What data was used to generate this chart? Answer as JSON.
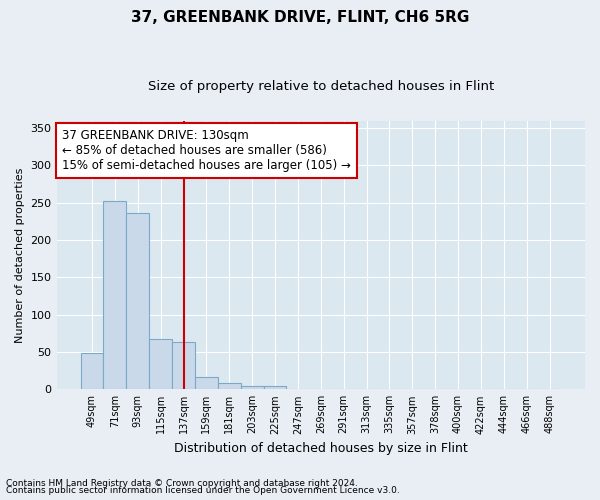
{
  "title": "37, GREENBANK DRIVE, FLINT, CH6 5RG",
  "subtitle": "Size of property relative to detached houses in Flint",
  "xlabel": "Distribution of detached houses by size in Flint",
  "ylabel": "Number of detached properties",
  "footnote1": "Contains HM Land Registry data © Crown copyright and database right 2024.",
  "footnote2": "Contains public sector information licensed under the Open Government Licence v3.0.",
  "annotation_line1": "37 GREENBANK DRIVE: 130sqm",
  "annotation_line2": "← 85% of detached houses are smaller (586)",
  "annotation_line3": "15% of semi-detached houses are larger (105) →",
  "bar_color": "#c9d9ea",
  "bar_edge_color": "#7aaac8",
  "vline_color": "#cc0000",
  "vline_x_index": 4,
  "categories": [
    "49sqm",
    "71sqm",
    "93sqm",
    "115sqm",
    "137sqm",
    "159sqm",
    "181sqm",
    "203sqm",
    "225sqm",
    "247sqm",
    "269sqm",
    "291sqm",
    "313sqm",
    "335sqm",
    "357sqm",
    "378sqm",
    "400sqm",
    "422sqm",
    "444sqm",
    "466sqm",
    "488sqm"
  ],
  "values": [
    48,
    252,
    236,
    68,
    64,
    16,
    9,
    5,
    4,
    0,
    0,
    0,
    0,
    0,
    0,
    0,
    0,
    0,
    0,
    0,
    0
  ],
  "ylim": [
    0,
    360
  ],
  "yticks": [
    0,
    50,
    100,
    150,
    200,
    250,
    300,
    350
  ],
  "background_color": "#e8eef4",
  "plot_background": "#dce8f0",
  "grid_color": "#ffffff",
  "title_fontsize": 11,
  "subtitle_fontsize": 9.5,
  "annotation_fontsize": 8.5,
  "ylabel_fontsize": 8,
  "xlabel_fontsize": 9,
  "footnote_fontsize": 6.5
}
